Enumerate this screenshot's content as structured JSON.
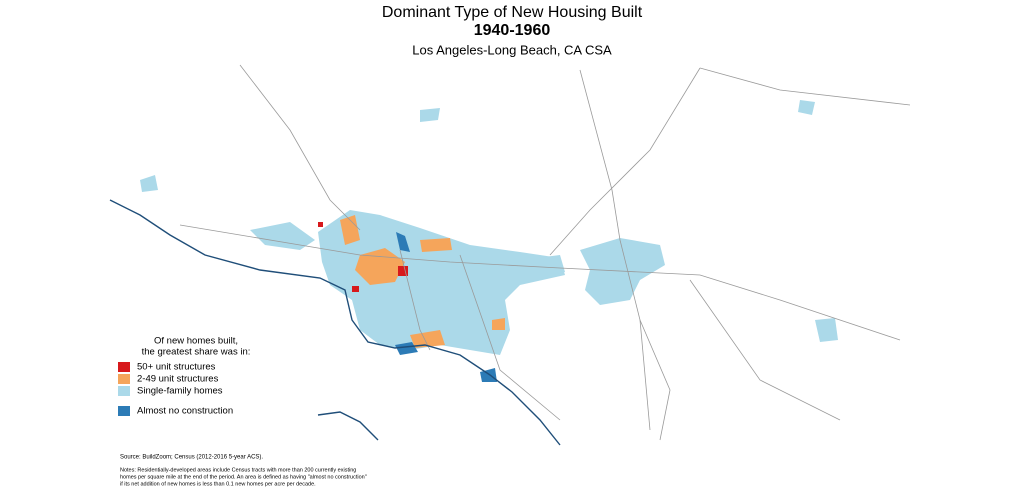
{
  "header": {
    "title": "Dominant Type of New Housing Built",
    "period": "1940-1960",
    "region": "Los Angeles-Long Beach, CA CSA"
  },
  "legend": {
    "title_lines": [
      "Of new homes built,",
      "the greatest share was in:"
    ],
    "items": [
      {
        "label": "50+ unit structures",
        "color": "#d7191c"
      },
      {
        "label": "2-49 unit structures",
        "color": "#f5a55b"
      },
      {
        "label": "Single-family homes",
        "color": "#abd9e9"
      },
      {
        "label": "Almost no construction",
        "color": "#2c7bb6"
      }
    ]
  },
  "footer": {
    "source": "Source: BuildZoom; Census (2012-2016 5-year ACS).",
    "notes_lines": [
      "Notes: Residentially-developed areas include Census tracts with more than 200 currently existing",
      "homes per square mile at the end of the period. An area is defined as having \"almost no construction\"",
      "if its net addition of new homes is less than 0.1 new homes per acre per decade."
    ]
  }
}
